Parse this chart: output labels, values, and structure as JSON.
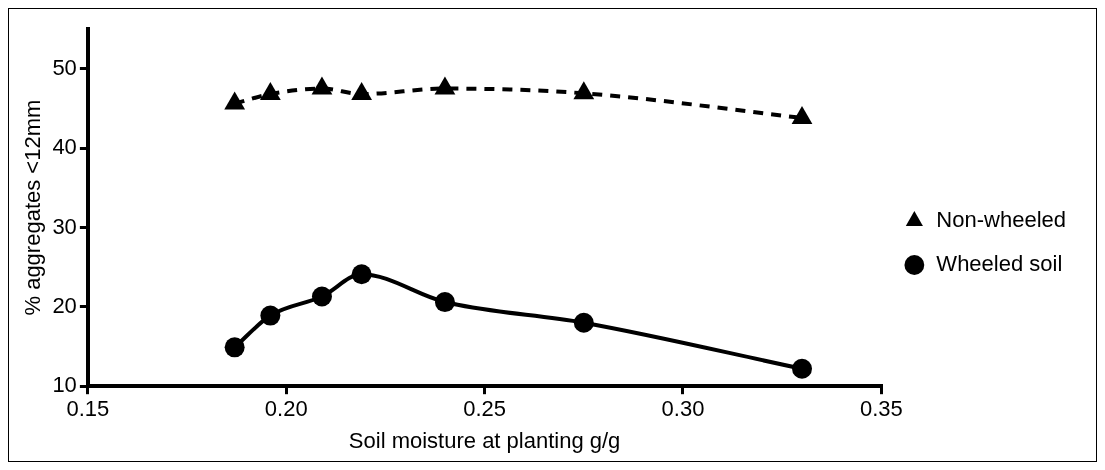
{
  "chart_data": {
    "type": "line",
    "xlabel": "Soil moisture at planting g/g",
    "ylabel": "% aggregates <12mm",
    "xlim": [
      0.15,
      0.35
    ],
    "xticks": [
      {
        "value": 0.15,
        "label": "0.15"
      },
      {
        "value": 0.2,
        "label": "0.20"
      },
      {
        "value": 0.25,
        "label": "0.25"
      },
      {
        "value": 0.3,
        "label": "0.30"
      },
      {
        "value": 0.35,
        "label": "0.35"
      }
    ],
    "ylim": [
      10,
      55
    ],
    "yticks": [
      10,
      20,
      30,
      40,
      50
    ],
    "grid": false,
    "legend": "right",
    "series": [
      {
        "name": "Non-wheeled",
        "color": "#000000",
        "marker": "triangle",
        "line_style": "dashed",
        "x": [
          0.187,
          0.196,
          0.209,
          0.219,
          0.24,
          0.275,
          0.33
        ],
        "values": [
          45.6,
          46.8,
          47.5,
          46.8,
          47.5,
          46.9,
          43.8
        ]
      },
      {
        "name": "Wheeled soil",
        "color": "#000000",
        "marker": "circle",
        "line_style": "solid",
        "x": [
          0.187,
          0.196,
          0.209,
          0.219,
          0.24,
          0.275,
          0.33
        ],
        "values": [
          14.9,
          18.9,
          21.3,
          24.1,
          20.6,
          18.0,
          12.2
        ]
      }
    ]
  }
}
